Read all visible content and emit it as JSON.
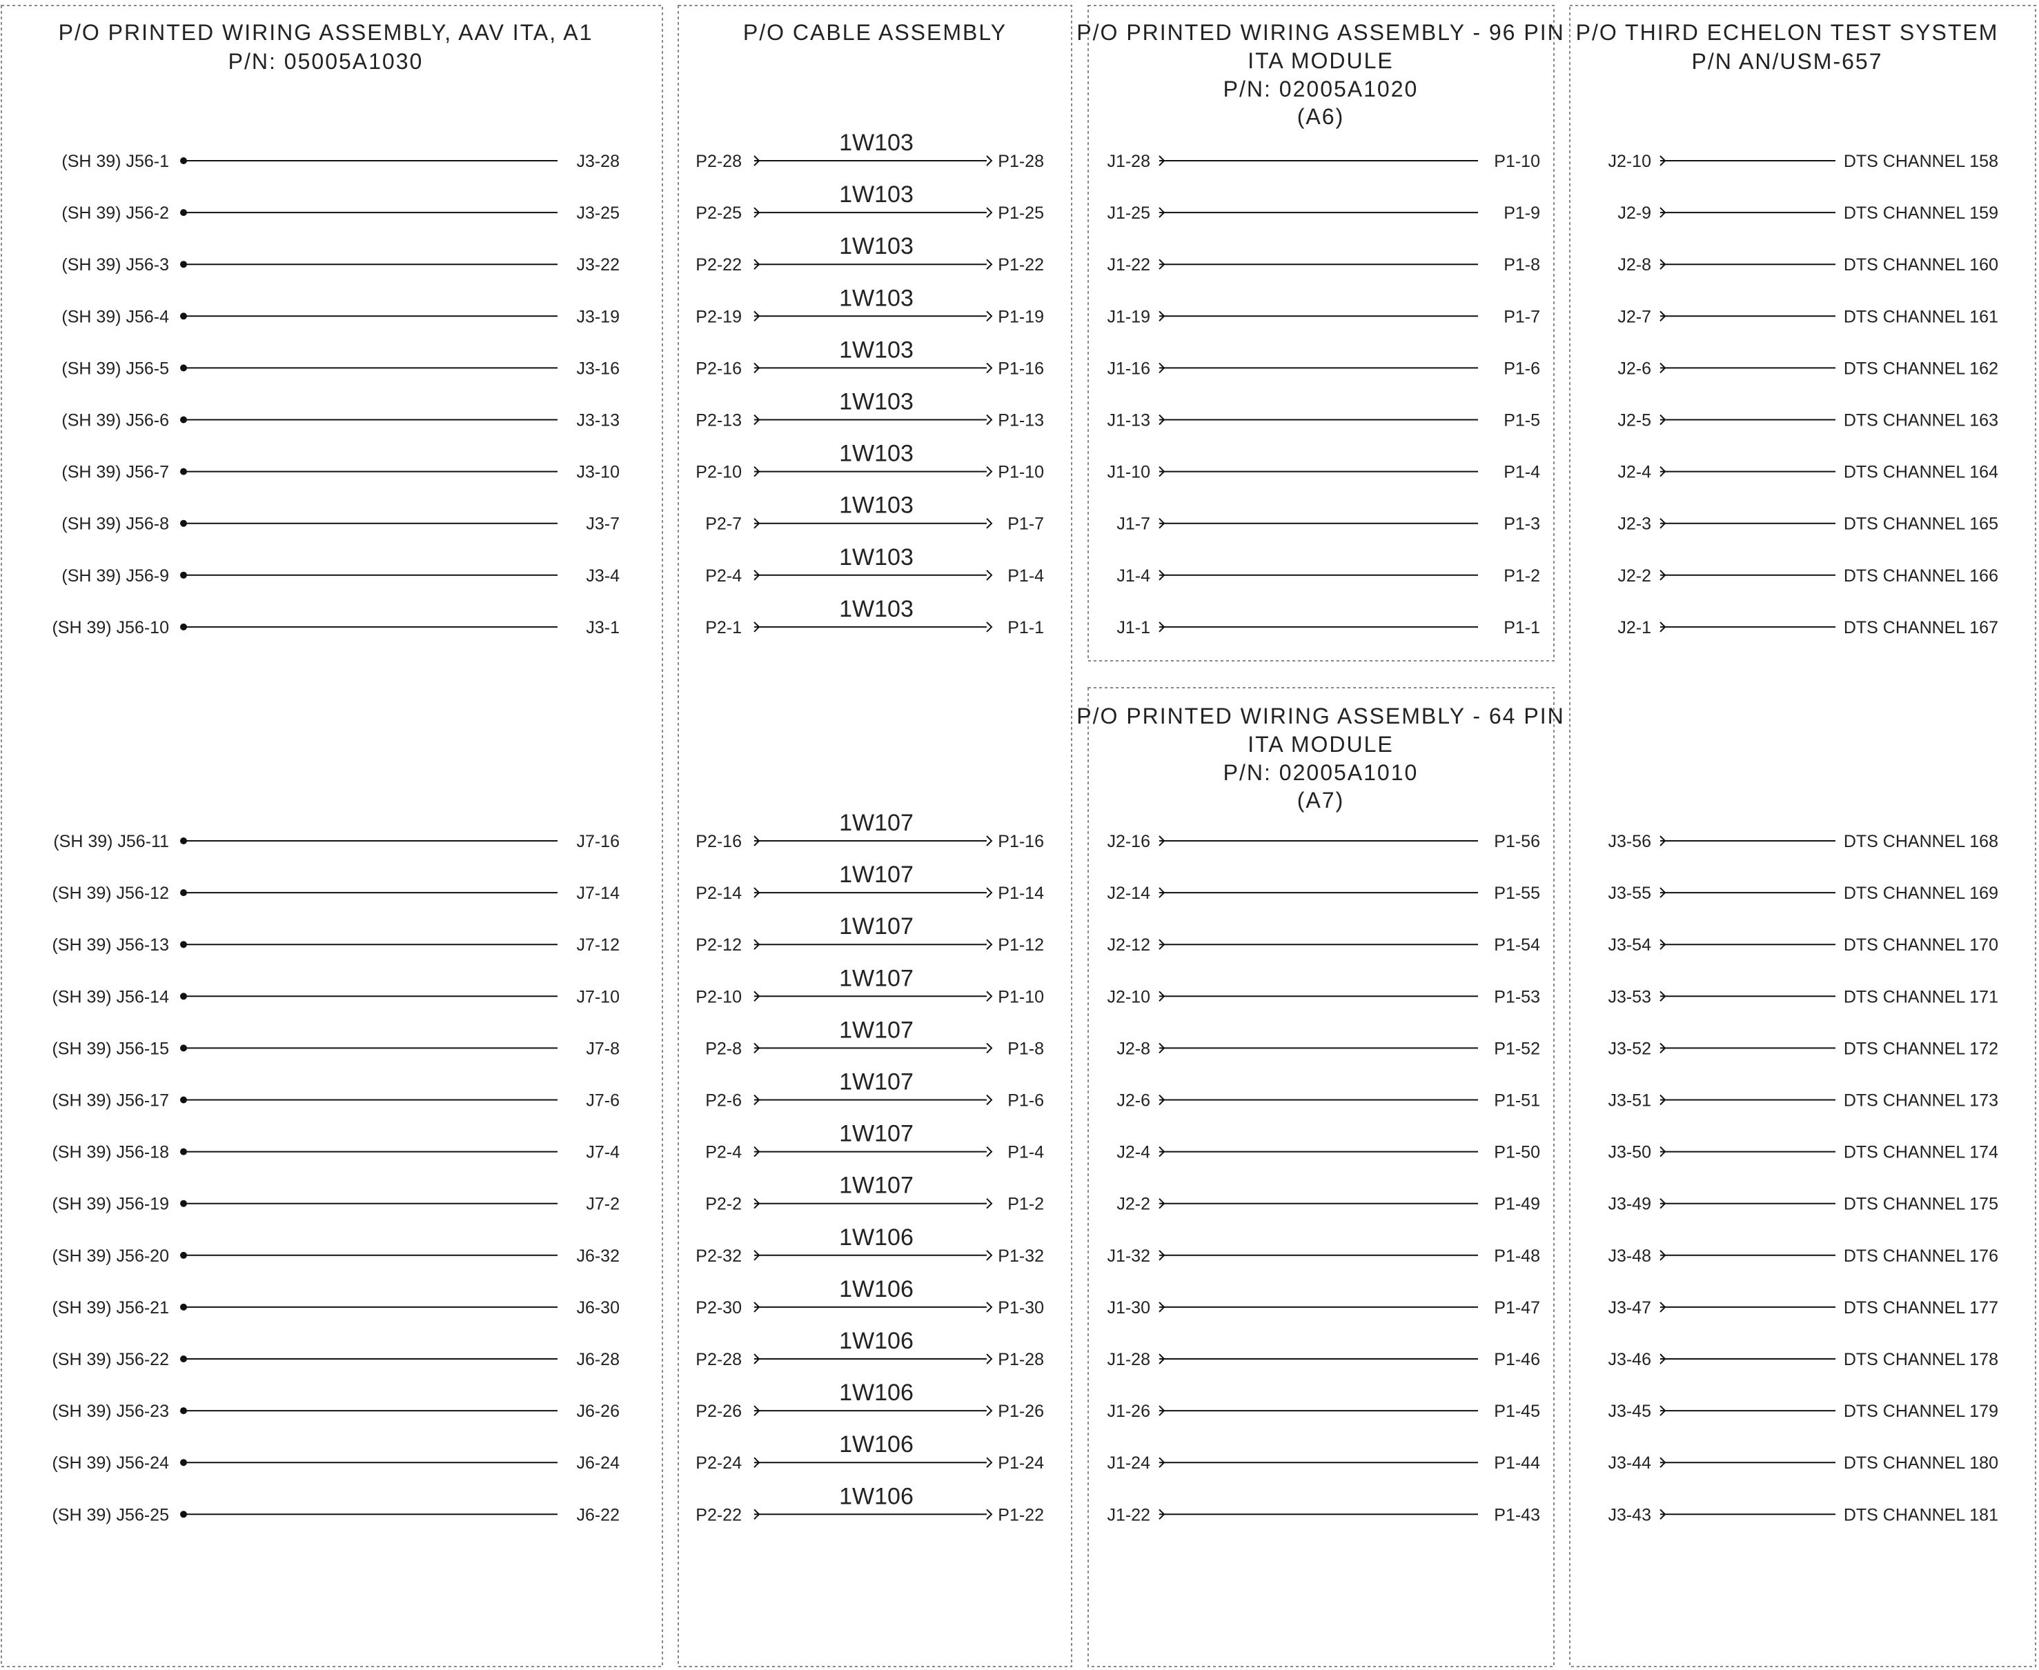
{
  "panels": {
    "a1": {
      "title": [
        "P/O PRINTED WIRING ASSEMBLY, AAV ITA, A1",
        "P/N: 05005A1030"
      ],
      "rows_top": [
        {
          "left": "(SH 39) J56-1",
          "right": "J3-28"
        },
        {
          "left": "(SH 39) J56-2",
          "right": "J3-25"
        },
        {
          "left": "(SH 39) J56-3",
          "right": "J3-22"
        },
        {
          "left": "(SH 39) J56-4",
          "right": "J3-19"
        },
        {
          "left": "(SH 39) J56-5",
          "right": "J3-16"
        },
        {
          "left": "(SH 39) J56-6",
          "right": "J3-13"
        },
        {
          "left": "(SH 39) J56-7",
          "right": "J3-10"
        },
        {
          "left": "(SH 39) J56-8",
          "right": "J3-7"
        },
        {
          "left": "(SH 39) J56-9",
          "right": "J3-4"
        },
        {
          "left": "(SH 39) J56-10",
          "right": "J3-1"
        }
      ],
      "rows_bottom": [
        {
          "left": "(SH 39) J56-11",
          "right": "J7-16"
        },
        {
          "left": "(SH 39) J56-12",
          "right": "J7-14"
        },
        {
          "left": "(SH 39) J56-13",
          "right": "J7-12"
        },
        {
          "left": "(SH 39) J56-14",
          "right": "J7-10"
        },
        {
          "left": "(SH 39) J56-15",
          "right": "J7-8"
        },
        {
          "left": "(SH 39) J56-17",
          "right": "J7-6"
        },
        {
          "left": "(SH 39) J56-18",
          "right": "J7-4"
        },
        {
          "left": "(SH 39) J56-19",
          "right": "J7-2"
        },
        {
          "left": "(SH 39) J56-20",
          "right": "J6-32"
        },
        {
          "left": "(SH 39) J56-21",
          "right": "J6-30"
        },
        {
          "left": "(SH 39) J56-22",
          "right": "J6-28"
        },
        {
          "left": "(SH 39) J56-23",
          "right": "J6-26"
        },
        {
          "left": "(SH 39) J56-24",
          "right": "J6-24"
        },
        {
          "left": "(SH 39) J56-25",
          "right": "J6-22"
        }
      ]
    },
    "cable": {
      "title": [
        "P/O CABLE ASSEMBLY"
      ],
      "rows_top": [
        {
          "left": "P2-28",
          "cable": "1W103",
          "right": "P1-28"
        },
        {
          "left": "P2-25",
          "cable": "1W103",
          "right": "P1-25"
        },
        {
          "left": "P2-22",
          "cable": "1W103",
          "right": "P1-22"
        },
        {
          "left": "P2-19",
          "cable": "1W103",
          "right": "P1-19"
        },
        {
          "left": "P2-16",
          "cable": "1W103",
          "right": "P1-16"
        },
        {
          "left": "P2-13",
          "cable": "1W103",
          "right": "P1-13"
        },
        {
          "left": "P2-10",
          "cable": "1W103",
          "right": "P1-10"
        },
        {
          "left": "P2-7",
          "cable": "1W103",
          "right": "P1-7"
        },
        {
          "left": "P2-4",
          "cable": "1W103",
          "right": "P1-4"
        },
        {
          "left": "P2-1",
          "cable": "1W103",
          "right": "P1-1"
        }
      ],
      "rows_bottom": [
        {
          "left": "P2-16",
          "cable": "1W107",
          "right": "P1-16"
        },
        {
          "left": "P2-14",
          "cable": "1W107",
          "right": "P1-14"
        },
        {
          "left": "P2-12",
          "cable": "1W107",
          "right": "P1-12"
        },
        {
          "left": "P2-10",
          "cable": "1W107",
          "right": "P1-10"
        },
        {
          "left": "P2-8",
          "cable": "1W107",
          "right": "P1-8"
        },
        {
          "left": "P2-6",
          "cable": "1W107",
          "right": "P1-6"
        },
        {
          "left": "P2-4",
          "cable": "1W107",
          "right": "P1-4"
        },
        {
          "left": "P2-2",
          "cable": "1W107",
          "right": "P1-2"
        },
        {
          "left": "P2-32",
          "cable": "1W106",
          "right": "P1-32"
        },
        {
          "left": "P2-30",
          "cable": "1W106",
          "right": "P1-30"
        },
        {
          "left": "P2-28",
          "cable": "1W106",
          "right": "P1-28"
        },
        {
          "left": "P2-26",
          "cable": "1W106",
          "right": "P1-26"
        },
        {
          "left": "P2-24",
          "cable": "1W106",
          "right": "P1-24"
        },
        {
          "left": "P2-22",
          "cable": "1W106",
          "right": "P1-22"
        }
      ]
    },
    "a6": {
      "title": [
        "P/O PRINTED WIRING ASSEMBLY - 96 PIN",
        "ITA MODULE",
        "P/N: 02005A1020",
        "(A6)"
      ],
      "rows": [
        {
          "left": "J1-28",
          "right": "P1-10"
        },
        {
          "left": "J1-25",
          "right": "P1-9"
        },
        {
          "left": "J1-22",
          "right": "P1-8"
        },
        {
          "left": "J1-19",
          "right": "P1-7"
        },
        {
          "left": "J1-16",
          "right": "P1-6"
        },
        {
          "left": "J1-13",
          "right": "P1-5"
        },
        {
          "left": "J1-10",
          "right": "P1-4"
        },
        {
          "left": "J1-7",
          "right": "P1-3"
        },
        {
          "left": "J1-4",
          "right": "P1-2"
        },
        {
          "left": "J1-1",
          "right": "P1-1"
        }
      ]
    },
    "a7": {
      "title": [
        "P/O PRINTED WIRING ASSEMBLY - 64 PIN",
        "ITA MODULE",
        "P/N: 02005A1010",
        "(A7)"
      ],
      "rows": [
        {
          "left": "J2-16",
          "right": "P1-56"
        },
        {
          "left": "J2-14",
          "right": "P1-55"
        },
        {
          "left": "J2-12",
          "right": "P1-54"
        },
        {
          "left": "J2-10",
          "right": "P1-53"
        },
        {
          "left": "J2-8",
          "right": "P1-52"
        },
        {
          "left": "J2-6",
          "right": "P1-51"
        },
        {
          "left": "J2-4",
          "right": "P1-50"
        },
        {
          "left": "J2-2",
          "right": "P1-49"
        },
        {
          "left": "J1-32",
          "right": "P1-48"
        },
        {
          "left": "J1-30",
          "right": "P1-47"
        },
        {
          "left": "J1-28",
          "right": "P1-46"
        },
        {
          "left": "J1-26",
          "right": "P1-45"
        },
        {
          "left": "J1-24",
          "right": "P1-44"
        },
        {
          "left": "J1-22",
          "right": "P1-43"
        }
      ]
    },
    "tes": {
      "title": [
        "P/O THIRD ECHELON TEST SYSTEM",
        "P/N AN/USM-657"
      ],
      "rows_top": [
        {
          "left": "J2-10",
          "right": "DTS CHANNEL 158"
        },
        {
          "left": "J2-9",
          "right": "DTS CHANNEL 159"
        },
        {
          "left": "J2-8",
          "right": "DTS CHANNEL 160"
        },
        {
          "left": "J2-7",
          "right": "DTS CHANNEL 161"
        },
        {
          "left": "J2-6",
          "right": "DTS CHANNEL 162"
        },
        {
          "left": "J2-5",
          "right": "DTS CHANNEL 163"
        },
        {
          "left": "J2-4",
          "right": "DTS CHANNEL 164"
        },
        {
          "left": "J2-3",
          "right": "DTS CHANNEL 165"
        },
        {
          "left": "J2-2",
          "right": "DTS CHANNEL 166"
        },
        {
          "left": "J2-1",
          "right": "DTS CHANNEL 167"
        }
      ],
      "rows_bottom": [
        {
          "left": "J3-56",
          "right": "DTS CHANNEL 168"
        },
        {
          "left": "J3-55",
          "right": "DTS CHANNEL 169"
        },
        {
          "left": "J3-54",
          "right": "DTS CHANNEL 170"
        },
        {
          "left": "J3-53",
          "right": "DTS CHANNEL 171"
        },
        {
          "left": "J3-52",
          "right": "DTS CHANNEL 172"
        },
        {
          "left": "J3-51",
          "right": "DTS CHANNEL 173"
        },
        {
          "left": "J3-50",
          "right": "DTS CHANNEL 174"
        },
        {
          "left": "J3-49",
          "right": "DTS CHANNEL 175"
        },
        {
          "left": "J3-48",
          "right": "DTS CHANNEL 176"
        },
        {
          "left": "J3-47",
          "right": "DTS CHANNEL 177"
        },
        {
          "left": "J3-46",
          "right": "DTS CHANNEL 178"
        },
        {
          "left": "J3-45",
          "right": "DTS CHANNEL 179"
        },
        {
          "left": "J3-44",
          "right": "DTS CHANNEL 180"
        },
        {
          "left": "J3-43",
          "right": "DTS CHANNEL 181"
        }
      ]
    }
  }
}
